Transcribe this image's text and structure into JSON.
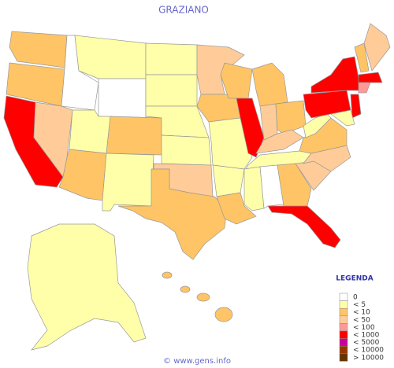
{
  "title": "GRAZIANO",
  "legend": {
    "title": "LEGENDA",
    "entries": [
      {
        "label": "0",
        "color": "#ffffff"
      },
      {
        "label": "< 5",
        "color": "#ffffaa"
      },
      {
        "label": "< 10",
        "color": "#ffc466"
      },
      {
        "label": "< 50",
        "color": "#ffcc99"
      },
      {
        "label": "< 100",
        "color": "#ff9999"
      },
      {
        "label": "< 1000",
        "color": "#ff0000"
      },
      {
        "label": "< 5000",
        "color": "#cc0099"
      },
      {
        "label": "< 10000",
        "color": "#993300"
      },
      {
        "label": "> 10000",
        "color": "#663300"
      }
    ]
  },
  "footer": "© www.gens.info"
}
